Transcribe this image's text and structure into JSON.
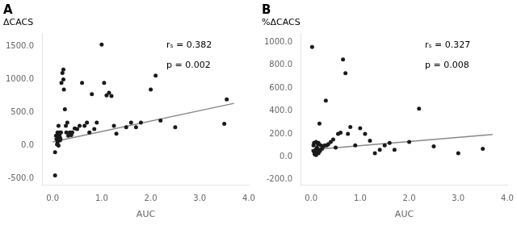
{
  "chart_data": [
    {
      "type": "scatter",
      "title": "A",
      "ylabel": "ΔCACS",
      "xlabel": "AUC",
      "annotations": [
        "rₛ = 0.382",
        "p = 0.002"
      ],
      "xlim": [
        -0.2,
        4.0
      ],
      "ylim": [
        -600,
        1700
      ],
      "xticks": [
        {
          "value": 0.0,
          "label": "0.0"
        },
        {
          "value": 1.0,
          "label": "1.0"
        },
        {
          "value": 2.0,
          "label": "2.0"
        },
        {
          "value": 3.0,
          "label": "3.0"
        },
        {
          "value": 4.0,
          "label": "4.0"
        }
      ],
      "yticks": [
        {
          "value": -500.0,
          "label": "-500.0"
        },
        {
          "value": 0.0,
          "label": "0.0"
        },
        {
          "value": 500.0,
          "label": "500.0"
        },
        {
          "value": 1000.0,
          "label": "1000.0"
        },
        {
          "value": 1500.0,
          "label": "1500.0"
        }
      ],
      "grid": false,
      "series": [
        {
          "type": "scatter",
          "color": "#1a1a1a",
          "x": [
            0.05,
            0.05,
            0.07,
            0.08,
            0.09,
            0.1,
            0.1,
            0.1,
            0.12,
            0.12,
            0.12,
            0.13,
            0.14,
            0.14,
            0.15,
            0.15,
            0.15,
            0.16,
            0.17,
            0.18,
            0.2,
            0.22,
            0.22,
            0.23,
            0.25,
            0.27,
            0.28,
            0.3,
            0.32,
            0.35,
            0.38,
            0.4,
            0.45,
            0.5,
            0.55,
            0.6,
            0.65,
            0.7,
            0.75,
            0.8,
            0.85,
            0.9,
            1.0,
            1.05,
            1.1,
            1.15,
            1.2,
            1.25,
            1.3,
            1.5,
            1.6,
            1.7,
            1.8,
            2.0,
            2.1,
            2.2,
            2.5,
            3.5,
            3.55
          ],
          "values": [
            -100,
            -450,
            150,
            100,
            20,
            200,
            100,
            50,
            0,
            300,
            120,
            150,
            160,
            180,
            120,
            200,
            80,
            100,
            200,
            950,
            1100,
            1150,
            1000,
            850,
            550,
            300,
            200,
            350,
            150,
            200,
            160,
            200,
            260,
            250,
            300,
            950,
            300,
            350,
            200,
            780,
            250,
            350,
            1530,
            950,
            760,
            800,
            750,
            300,
            180,
            280,
            350,
            280,
            350,
            850,
            1060,
            380,
            280,
            330,
            700
          ]
        },
        {
          "type": "line",
          "color": "#888888",
          "x": [
            0.0,
            3.7
          ],
          "values": [
            55.0,
            640.0
          ]
        }
      ]
    },
    {
      "type": "scatter",
      "title": "B",
      "ylabel": "%ΔCACS",
      "xlabel": "AUC",
      "annotations": [
        "rₛ = 0.327",
        "p = 0.008"
      ],
      "xlim": [
        -0.2,
        4.0
      ],
      "ylim": [
        -250,
        1080
      ],
      "xticks": [
        {
          "value": 0.0,
          "label": "0.0"
        },
        {
          "value": 1.0,
          "label": "1.0"
        },
        {
          "value": 2.0,
          "label": "2.0"
        },
        {
          "value": 3.0,
          "label": "3.0"
        },
        {
          "value": 4.0,
          "label": "4.0"
        }
      ],
      "yticks": [
        {
          "value": -200.0,
          "label": "-200.0"
        },
        {
          "value": 0.0,
          "label": "0.0"
        },
        {
          "value": 200.0,
          "label": "200.0"
        },
        {
          "value": 400.0,
          "label": "400.0"
        },
        {
          "value": 600.0,
          "label": "600.0"
        },
        {
          "value": 800.0,
          "label": "800.0"
        },
        {
          "value": 1000.0,
          "label": "1000.0"
        }
      ],
      "grid": false,
      "series": [
        {
          "type": "scatter",
          "color": "#1a1a1a",
          "x": [
            0.02,
            0.05,
            0.05,
            0.06,
            0.07,
            0.08,
            0.08,
            0.09,
            0.1,
            0.1,
            0.1,
            0.1,
            0.1,
            0.11,
            0.12,
            0.12,
            0.13,
            0.14,
            0.15,
            0.15,
            0.15,
            0.16,
            0.17,
            0.18,
            0.2,
            0.22,
            0.25,
            0.28,
            0.3,
            0.32,
            0.35,
            0.4,
            0.45,
            0.5,
            0.55,
            0.6,
            0.65,
            0.7,
            0.75,
            0.8,
            0.9,
            1.0,
            1.1,
            1.2,
            1.3,
            1.4,
            1.5,
            1.6,
            1.7,
            2.0,
            2.2,
            2.5,
            3.0,
            3.5
          ],
          "values": [
            960,
            50,
            100,
            120,
            25,
            30,
            20,
            60,
            50,
            30,
            130,
            25,
            15,
            40,
            50,
            80,
            50,
            110,
            30,
            50,
            120,
            60,
            290,
            50,
            100,
            70,
            90,
            100,
            490,
            100,
            110,
            130,
            150,
            80,
            200,
            210,
            850,
            730,
            200,
            260,
            100,
            250,
            200,
            140,
            30,
            60,
            100,
            120,
            60,
            130,
            420,
            90,
            30,
            70
          ]
        },
        {
          "type": "line",
          "color": "#888888",
          "x": [
            0.0,
            3.7
          ],
          "values": [
            60.0,
            195.0
          ]
        }
      ]
    }
  ]
}
